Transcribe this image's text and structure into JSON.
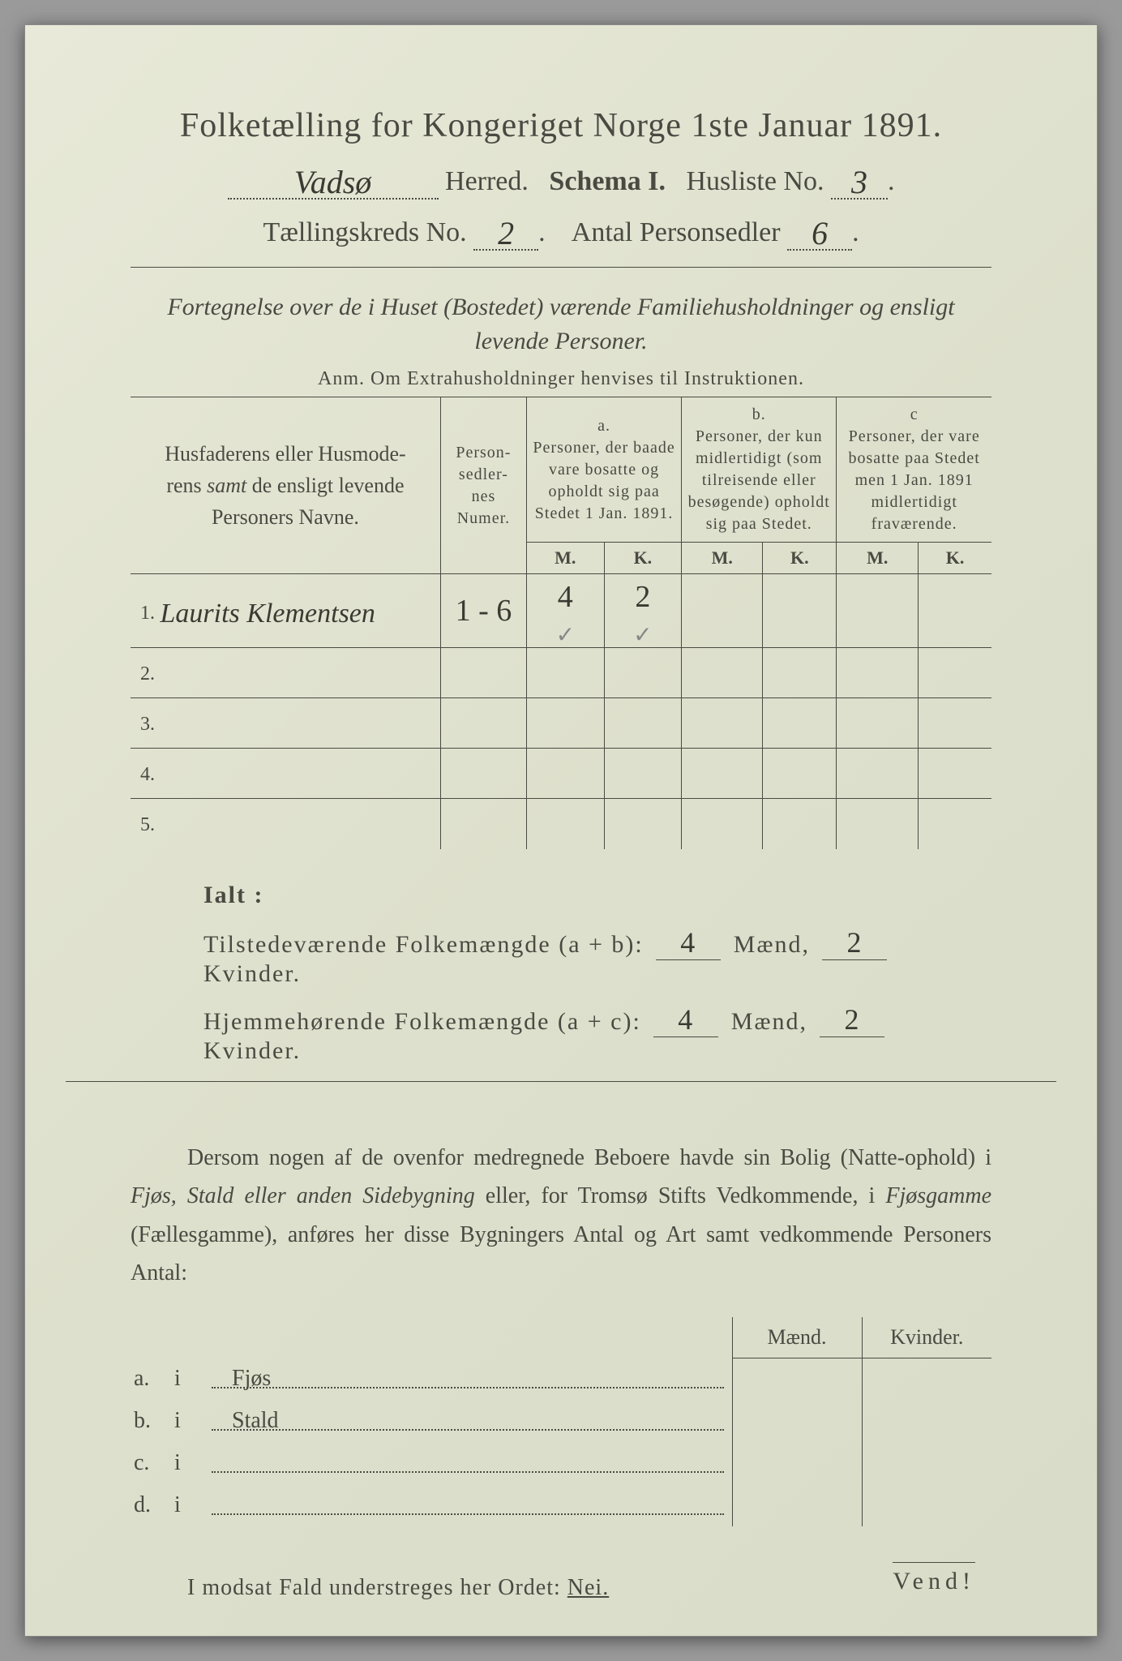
{
  "title": "Folketælling for Kongeriget Norge 1ste Januar 1891.",
  "header": {
    "herred_hw": "Vadsø",
    "herred_label": "Herred.",
    "schema_label": "Schema I.",
    "husliste_label": "Husliste No.",
    "husliste_no": "3",
    "kreds_label": "Tællingskreds No.",
    "kreds_no": "2",
    "antal_label": "Antal Personsedler",
    "antal_no": "6"
  },
  "fortegnelse": "Fortegnelse over de i Huset (Bostedet) værende Familiehusholdninger og ensligt levende Personer.",
  "anm": "Anm.  Om Extrahusholdninger henvises til Instruktionen.",
  "table": {
    "col_names": "Husfaderens eller Husmoderens samt de ensligt levende Personers Navne.",
    "col_numer": "Person-\nsedler-\nnes\nNumer.",
    "col_a_label": "a.",
    "col_a": "Personer, der baade vare bosatte og opholdt sig paa Stedet 1 Jan. 1891.",
    "col_b_label": "b.",
    "col_b": "Personer, der kun midlertidigt (som tilreisende eller besøgende) opholdt sig paa Stedet.",
    "col_c_label": "c",
    "col_c": "Personer, der vare bosatte paa Stedet men 1 Jan. 1891 midlertidigt fraværende.",
    "m": "M.",
    "k": "K.",
    "rows": [
      {
        "n": "1.",
        "name_hw": "Laurits Klementsen",
        "numer": "1 - 6",
        "a_m": "4",
        "a_k": "2",
        "b_m": "",
        "b_k": "",
        "c_m": "",
        "c_k": ""
      },
      {
        "n": "2.",
        "name_hw": "",
        "numer": "",
        "a_m": "",
        "a_k": "",
        "b_m": "",
        "b_k": "",
        "c_m": "",
        "c_k": ""
      },
      {
        "n": "3.",
        "name_hw": "",
        "numer": "",
        "a_m": "",
        "a_k": "",
        "b_m": "",
        "b_k": "",
        "c_m": "",
        "c_k": ""
      },
      {
        "n": "4.",
        "name_hw": "",
        "numer": "",
        "a_m": "",
        "a_k": "",
        "b_m": "",
        "b_k": "",
        "c_m": "",
        "c_k": ""
      },
      {
        "n": "5.",
        "name_hw": "",
        "numer": "",
        "a_m": "",
        "a_k": "",
        "b_m": "",
        "b_k": "",
        "c_m": "",
        "c_k": ""
      }
    ]
  },
  "ialt": {
    "label": "Ialt :",
    "line1_label": "Tilstedeværende Folkemængde (a + b):",
    "line2_label": "Hjemmehørende Folkemængde (a + c):",
    "maend": "Mænd,",
    "kvinder": "Kvinder.",
    "l1_m": "4",
    "l1_k": "2",
    "l2_m": "4",
    "l2_k": "2"
  },
  "body_para": "Dersom nogen af de ovenfor medregnede Beboere havde sin Bolig (Natte-ophold) i Fjøs, Stald eller anden Sidebygning eller, for Tromsø Stifts Vedkommende, i Fjøsgamme (Fællesgamme), anføres her disse Bygningers Antal og Art samt vedkommende Personers Antal:",
  "small_table": {
    "maend": "Mænd.",
    "kvinder": "Kvinder.",
    "rows": [
      {
        "a": "a.",
        "i": "i",
        "label": "Fjøs"
      },
      {
        "a": "b.",
        "i": "i",
        "label": "Stald"
      },
      {
        "a": "c.",
        "i": "i",
        "label": ""
      },
      {
        "a": "d.",
        "i": "i",
        "label": ""
      }
    ]
  },
  "nei_line_pre": "I modsat Fald understreges her Ordet:",
  "nei": "Nei.",
  "vend": "Vend!",
  "colors": {
    "paper": "#e2e4d2",
    "ink": "#4a4a42",
    "handwriting": "#3a3a32"
  }
}
